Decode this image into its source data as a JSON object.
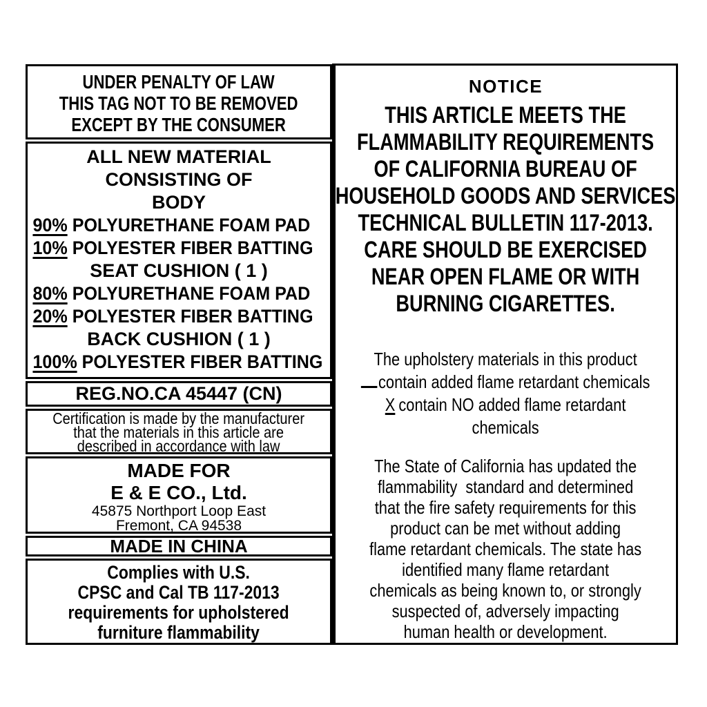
{
  "document_type": "furniture-law-label",
  "colors": {
    "ink": "#000000",
    "paper": "#ffffff"
  },
  "left_label": {
    "penalty_notice": {
      "lines": [
        "UNDER PENALTY OF LAW",
        "THIS TAG NOT TO BE REMOVED",
        "EXCEPT BY THE CONSUMER"
      ]
    },
    "materials": {
      "heading_lines": [
        "ALL NEW MATERIAL",
        "CONSISTING OF",
        "BODY"
      ],
      "rows": [
        {
          "pct": "90%",
          "text": "POLYURETHANE FOAM PAD"
        },
        {
          "pct": "10%",
          "text": "POLYESTER FIBER BATTING"
        },
        {
          "label": "SEAT CUSHION ( 1 )"
        },
        {
          "pct": "80%",
          "text": "POLYURETHANE FOAM PAD"
        },
        {
          "pct": "20%",
          "text": "POLYESTER FIBER BATTING"
        },
        {
          "label": "BACK CUSHION ( 1 )"
        },
        {
          "pct": "100%",
          "text": "POLYESTER FIBER BATTING"
        }
      ]
    },
    "reg_no": "REG.NO.CA 45447 (CN)",
    "certification_lines": [
      "Certification is made by the manufacturer",
      "that the materials in this article are",
      "described in accordance with law"
    ],
    "made_for": {
      "title": "MADE FOR",
      "company": "E & E CO., Ltd.",
      "address_lines": [
        "45875 Northport Loop East",
        "Fremont, CA 94538"
      ]
    },
    "origin": "MADE IN CHINA",
    "compliance_lines": [
      "Complies with U.S.",
      "CPSC and Cal TB 117-2013",
      "requirements for upholstered",
      "furniture flammability"
    ]
  },
  "right_label": {
    "notice_title": "NOTICE",
    "notice_lines": [
      "THIS ARTICLE MEETS THE",
      "FLAMMABILITY REQUIREMENTS",
      "OF CALIFORNIA BUREAU OF",
      "HOUSEHOLD GOODS AND SERVICES",
      "TECHNICAL BULLETIN 117-2013.",
      "CARE SHOULD BE EXERCISED",
      "NEAR OPEN FLAME OR WITH",
      "BURNING CIGARETTES."
    ],
    "flame_retardant_statement": {
      "intro": "The upholstery materials in this product",
      "contain_option": "contain added flame retardant chemicals",
      "no_contain_mark": "X",
      "no_contain_option": "contain NO added flame retardant",
      "tail": "chemicals"
    },
    "state_update_lines": [
      "The State of California has updated the",
      "flammability  standard and determined",
      "that the fire safety requirements for this",
      "product can be met without adding",
      "flame retardant chemicals. The state has",
      "identified many flame retardant",
      "chemicals as being known to, or strongly",
      "suspected of, adversely impacting",
      "human health or development."
    ]
  }
}
